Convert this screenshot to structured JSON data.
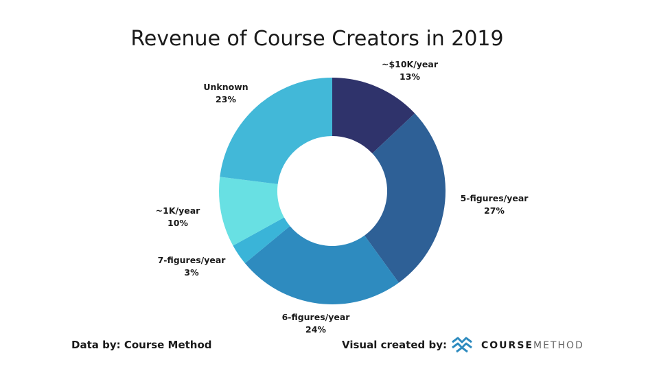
{
  "chart_data": {
    "type": "pie",
    "donut": true,
    "title": "Revenue of Course Creators in 2019",
    "slices": [
      {
        "label": "~$10K/year",
        "pct_label": "13%",
        "value": 13,
        "color": "#2f336b"
      },
      {
        "label": "5-figures/year",
        "pct_label": "27%",
        "value": 27,
        "color": "#2e6096"
      },
      {
        "label": "6-figures/year",
        "pct_label": "24%",
        "value": 24,
        "color": "#2e8bbf"
      },
      {
        "label": "7-figures/year",
        "pct_label": "3%",
        "value": 3,
        "color": "#3ab4d8"
      },
      {
        "label": "~1K/year",
        "pct_label": "10%",
        "value": 10,
        "color": "#68e0e3"
      },
      {
        "label": "Unknown",
        "pct_label": "23%",
        "value": 23,
        "color": "#42b8d8"
      }
    ]
  },
  "footer": {
    "data_credit": "Data by: Course Method",
    "visual_credit": "Visual created by:"
  },
  "brand": {
    "bold": "COURSE",
    "light": "METHOD",
    "bold_color": "#1a1a1a",
    "light_color": "#666666",
    "logo_color": "#2e8bbf"
  }
}
